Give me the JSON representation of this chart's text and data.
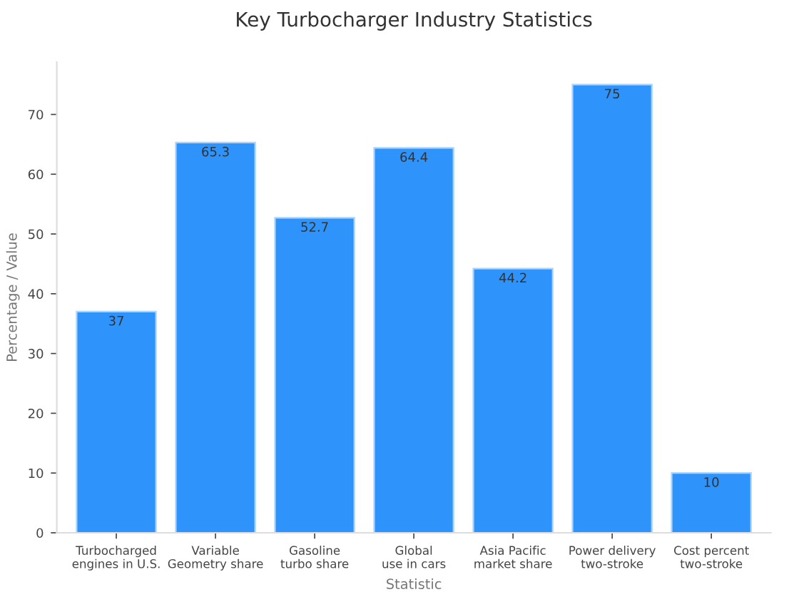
{
  "chart_data": {
    "type": "bar",
    "title": "Key Turbocharger Industry Statistics",
    "xlabel": "Statistic",
    "ylabel": "Percentage / Value",
    "categories": [
      "Turbocharged\nengines in U.S.",
      "Variable\nGeometry share",
      "Gasoline\nturbo share",
      "Global\nuse in cars",
      "Asia Pacific\nmarket share",
      "Power delivery\ntwo-stroke",
      "Cost percent\ntwo-stroke"
    ],
    "values": [
      37,
      65.3,
      52.7,
      64.4,
      44.2,
      75,
      10
    ],
    "color": "#2e93fa",
    "ylim": [
      0,
      78.75
    ],
    "yticks": [
      0,
      10,
      20,
      30,
      40,
      50,
      60,
      70
    ],
    "grid": false,
    "data_labels": true
  }
}
